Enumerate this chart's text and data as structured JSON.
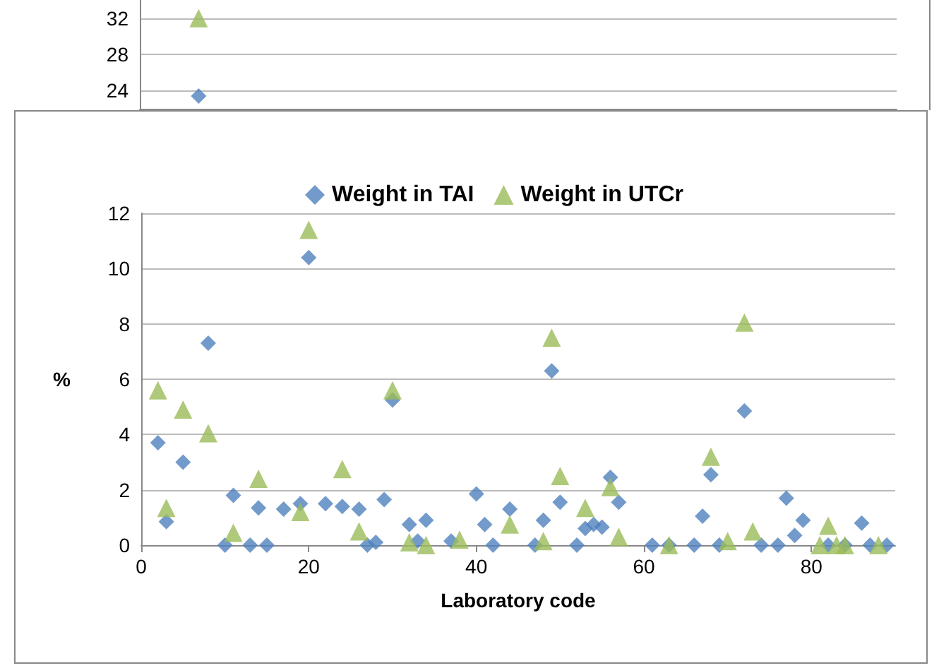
{
  "chart_data": [
    {
      "type": "scatter",
      "xlim": [
        0,
        90
      ],
      "xticks": [
        0,
        20,
        40,
        60,
        80
      ],
      "ylim": [
        22,
        34
      ],
      "yticks": [
        24,
        28,
        32
      ],
      "tick_labels": "y",
      "grid": "y",
      "series": [
        {
          "color": "#4f81bd",
          "marker": "diamond",
          "x": [
            7
          ],
          "values": [
            23.4
          ]
        },
        {
          "color": "#9bbb59",
          "marker": "triangle",
          "x": [
            7
          ],
          "values": [
            32
          ]
        }
      ]
    },
    {
      "type": "scatter",
      "xlabel": "Laboratory code",
      "ylabel": "%",
      "xlim": [
        0,
        90
      ],
      "xticks": [
        0,
        20,
        40,
        60,
        80
      ],
      "ylim": [
        0,
        12
      ],
      "yticks": [
        0,
        2,
        4,
        6,
        8,
        10,
        12
      ],
      "grid": "y",
      "legend": "top",
      "series": [
        {
          "name": "Weight in TAI",
          "color": "#4f81bd",
          "marker": "diamond",
          "x": [
            2,
            3,
            5,
            8,
            10,
            11,
            13,
            14,
            15,
            17,
            19,
            20,
            22,
            24,
            26,
            27,
            28,
            29,
            30,
            32,
            33,
            34,
            37,
            40,
            41,
            42,
            44,
            47,
            48,
            49,
            50,
            52,
            53,
            54,
            55,
            56,
            57,
            61,
            63,
            66,
            67,
            68,
            69,
            70,
            72,
            74,
            76,
            77,
            78,
            79,
            82,
            84,
            86,
            87,
            89
          ],
          "values": [
            3.7,
            0.85,
            3.0,
            7.3,
            0,
            1.8,
            0,
            1.35,
            0,
            1.3,
            1.5,
            10.4,
            1.5,
            1.4,
            1.3,
            0,
            0.1,
            1.65,
            5.25,
            0.75,
            0.15,
            0.9,
            0.15,
            1.85,
            0.75,
            0,
            1.3,
            0,
            0.9,
            6.3,
            1.55,
            0,
            0.6,
            0.75,
            0.65,
            2.45,
            1.55,
            0,
            0,
            0,
            1.05,
            2.55,
            0,
            null,
            4.85,
            0,
            0,
            1.7,
            0.35,
            0.9,
            0,
            0,
            0.8,
            0,
            0
          ]
        },
        {
          "name": "Weight in UTCr",
          "color": "#9bbb59",
          "marker": "triangle",
          "x": [
            2,
            3,
            5,
            8,
            11,
            14,
            19,
            20,
            24,
            26,
            30,
            32,
            34,
            38,
            44,
            48,
            49,
            50,
            53,
            56,
            57,
            63,
            68,
            70,
            72,
            73,
            81,
            82,
            83,
            84,
            88
          ],
          "values": [
            5.6,
            1.35,
            4.9,
            4.05,
            0.45,
            2.4,
            1.2,
            11.4,
            2.75,
            0.5,
            5.6,
            0.1,
            0,
            0.2,
            0.75,
            0.15,
            7.5,
            2.5,
            1.35,
            2.1,
            0.3,
            0,
            3.2,
            0.15,
            8.05,
            0.5,
            0,
            0.7,
            0,
            0,
            0
          ]
        }
      ]
    }
  ]
}
